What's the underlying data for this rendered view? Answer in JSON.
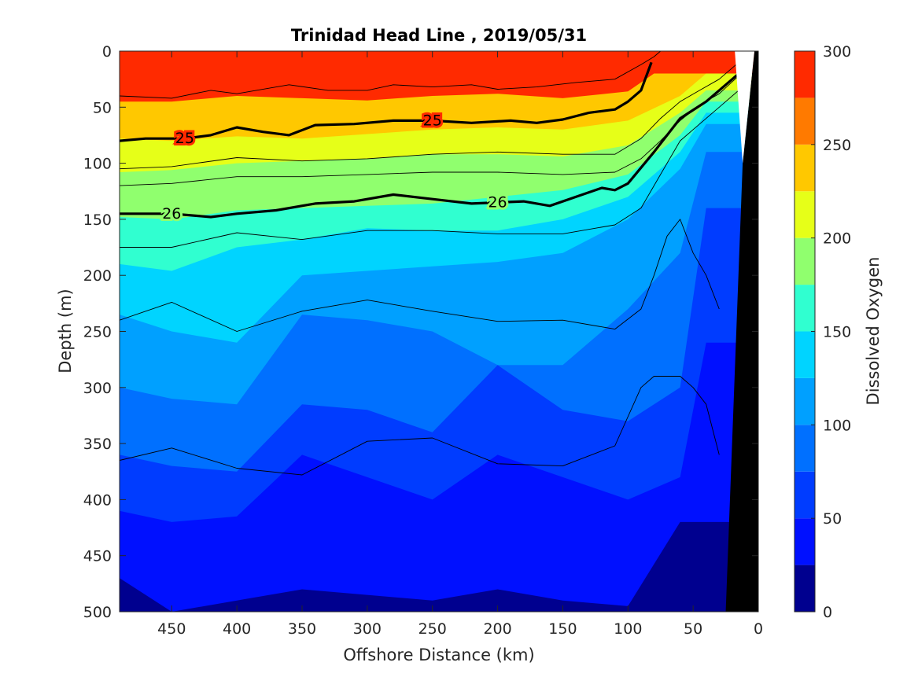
{
  "chart_data": {
    "type": "heatmap",
    "title": "Trinidad Head Line , 2019/05/31",
    "xlabel": "Offshore Distance (km)",
    "ylabel": "Depth (m)",
    "colorbar_label": "Dissolved Oxygen",
    "xlim": [
      490,
      0
    ],
    "ylim": [
      0,
      500
    ],
    "x_reversed": true,
    "y_reversed": true,
    "x_ticks": [
      450,
      400,
      350,
      300,
      250,
      200,
      150,
      100,
      50,
      0
    ],
    "y_ticks": [
      0,
      50,
      100,
      150,
      200,
      250,
      300,
      350,
      400,
      450,
      500
    ],
    "colorbar": {
      "min": 0,
      "max": 300,
      "ticks": [
        0,
        50,
        100,
        150,
        200,
        250,
        300
      ],
      "levels": [
        0,
        25,
        50,
        75,
        100,
        125,
        150,
        175,
        200,
        225,
        250,
        275,
        300
      ],
      "colors": [
        "#00008f",
        "#0010ff",
        "#003cff",
        "#0070ff",
        "#00a0ff",
        "#00d4ff",
        "#30ffd0",
        "#90ff6e",
        "#e6ff18",
        "#ffc800",
        "#ff7a00",
        "#ff2a00",
        "#d20000"
      ]
    },
    "oxygen_level_boundaries": [
      {
        "level": 250,
        "x": [
          490,
          450,
          400,
          350,
          300,
          250,
          200,
          150,
          100,
          80
        ],
        "y": [
          45,
          45,
          40,
          42,
          44,
          40,
          38,
          42,
          36,
          20
        ]
      },
      {
        "level": 225,
        "x": [
          490,
          450,
          400,
          350,
          300,
          250,
          200,
          150,
          100,
          60,
          40
        ],
        "y": [
          78,
          80,
          76,
          78,
          74,
          70,
          68,
          70,
          62,
          40,
          20
        ]
      },
      {
        "level": 200,
        "x": [
          490,
          450,
          400,
          350,
          300,
          250,
          200,
          150,
          100,
          60,
          40
        ],
        "y": [
          108,
          106,
          100,
          98,
          96,
          92,
          92,
          94,
          84,
          55,
          35
        ]
      },
      {
        "level": 175,
        "x": [
          490,
          450,
          400,
          350,
          300,
          250,
          200,
          150,
          100,
          60,
          40
        ],
        "y": [
          148,
          150,
          142,
          140,
          138,
          136,
          130,
          124,
          110,
          75,
          45
        ]
      },
      {
        "level": 150,
        "x": [
          490,
          450,
          400,
          350,
          300,
          250,
          200,
          150,
          100,
          60,
          40
        ],
        "y": [
          190,
          196,
          175,
          168,
          158,
          160,
          160,
          150,
          130,
          90,
          55
        ]
      },
      {
        "level": 125,
        "x": [
          490,
          450,
          400,
          350,
          300,
          250,
          200,
          150,
          100,
          60,
          40
        ],
        "y": [
          235,
          250,
          260,
          200,
          196,
          192,
          188,
          180,
          150,
          105,
          65
        ]
      },
      {
        "level": 100,
        "x": [
          490,
          450,
          400,
          350,
          300,
          250,
          200,
          150,
          100,
          60,
          40
        ],
        "y": [
          300,
          310,
          315,
          235,
          240,
          250,
          280,
          280,
          230,
          180,
          90
        ]
      },
      {
        "level": 75,
        "x": [
          490,
          450,
          400,
          350,
          300,
          250,
          200,
          150,
          100,
          60,
          40
        ],
        "y": [
          360,
          370,
          375,
          315,
          320,
          340,
          280,
          320,
          330,
          300,
          140
        ]
      },
      {
        "level": 50,
        "x": [
          490,
          450,
          400,
          350,
          300,
          250,
          200,
          150,
          100,
          60,
          40
        ],
        "y": [
          410,
          420,
          415,
          360,
          380,
          400,
          360,
          380,
          400,
          380,
          260
        ]
      },
      {
        "level": 25,
        "x": [
          490,
          450,
          400,
          350,
          300,
          250,
          200,
          150,
          100,
          60,
          40
        ],
        "y": [
          470,
          500,
          490,
          480,
          485,
          490,
          480,
          490,
          495,
          420,
          420
        ]
      }
    ],
    "density_contours": [
      {
        "label": "25",
        "bold": true,
        "x": [
          490,
          470,
          440,
          420,
          400,
          380,
          360,
          340,
          310,
          280,
          250,
          220,
          190,
          170,
          150,
          130,
          110,
          100,
          90,
          82
        ],
        "y": [
          80,
          78,
          78,
          75,
          68,
          72,
          75,
          66,
          65,
          62,
          62,
          64,
          62,
          64,
          61,
          55,
          52,
          45,
          35,
          10
        ]
      },
      {
        "label": "26",
        "bold": true,
        "x": [
          490,
          470,
          450,
          420,
          400,
          370,
          340,
          310,
          280,
          250,
          220,
          200,
          180,
          160,
          140,
          120,
          110,
          100,
          80,
          60,
          40,
          20,
          10
        ],
        "y": [
          145,
          145,
          145,
          148,
          145,
          142,
          136,
          134,
          128,
          132,
          136,
          135,
          134,
          138,
          130,
          122,
          124,
          118,
          90,
          60,
          45,
          25,
          15
        ]
      },
      {
        "label": "",
        "bold": false,
        "x": [
          490,
          450,
          420,
          400,
          360,
          330,
          300,
          280,
          250,
          220,
          200,
          170,
          140,
          110,
          90,
          80,
          75
        ],
        "y": [
          40,
          42,
          35,
          38,
          30,
          35,
          35,
          30,
          32,
          30,
          34,
          32,
          28,
          25,
          12,
          5,
          0
        ]
      },
      {
        "label": "",
        "bold": false,
        "x": [
          490,
          450,
          400,
          350,
          300,
          250,
          200,
          150,
          110,
          90,
          75,
          60,
          45,
          30,
          15
        ],
        "y": [
          105,
          103,
          95,
          98,
          96,
          92,
          90,
          92,
          92,
          78,
          60,
          45,
          35,
          25,
          10
        ]
      },
      {
        "label": "",
        "bold": false,
        "x": [
          490,
          450,
          400,
          350,
          300,
          250,
          200,
          150,
          110,
          90,
          75,
          60,
          45,
          30,
          15
        ],
        "y": [
          120,
          118,
          112,
          112,
          110,
          108,
          108,
          110,
          108,
          96,
          80,
          62,
          48,
          38,
          22
        ]
      },
      {
        "label": "",
        "bold": false,
        "x": [
          490,
          450,
          400,
          350,
          300,
          250,
          200,
          150,
          110,
          90,
          75,
          60,
          45,
          30,
          15
        ],
        "y": [
          175,
          175,
          162,
          168,
          160,
          160,
          163,
          163,
          155,
          140,
          110,
          80,
          65,
          50,
          35
        ]
      },
      {
        "label": "",
        "bold": false,
        "x": [
          490,
          450,
          400,
          350,
          300,
          250,
          200,
          150,
          110,
          90,
          80,
          70,
          60,
          50,
          40,
          30
        ],
        "y": [
          240,
          224,
          250,
          232,
          222,
          232,
          241,
          240,
          248,
          230,
          200,
          165,
          150,
          180,
          200,
          230
        ]
      },
      {
        "label": "",
        "bold": false,
        "x": [
          490,
          450,
          400,
          350,
          300,
          250,
          200,
          150,
          110,
          90,
          80,
          70,
          60,
          50,
          40,
          30
        ],
        "y": [
          365,
          354,
          372,
          378,
          348,
          345,
          368,
          370,
          352,
          300,
          290,
          290,
          290,
          300,
          315,
          360
        ]
      }
    ],
    "bathymetry_fill": "black"
  }
}
